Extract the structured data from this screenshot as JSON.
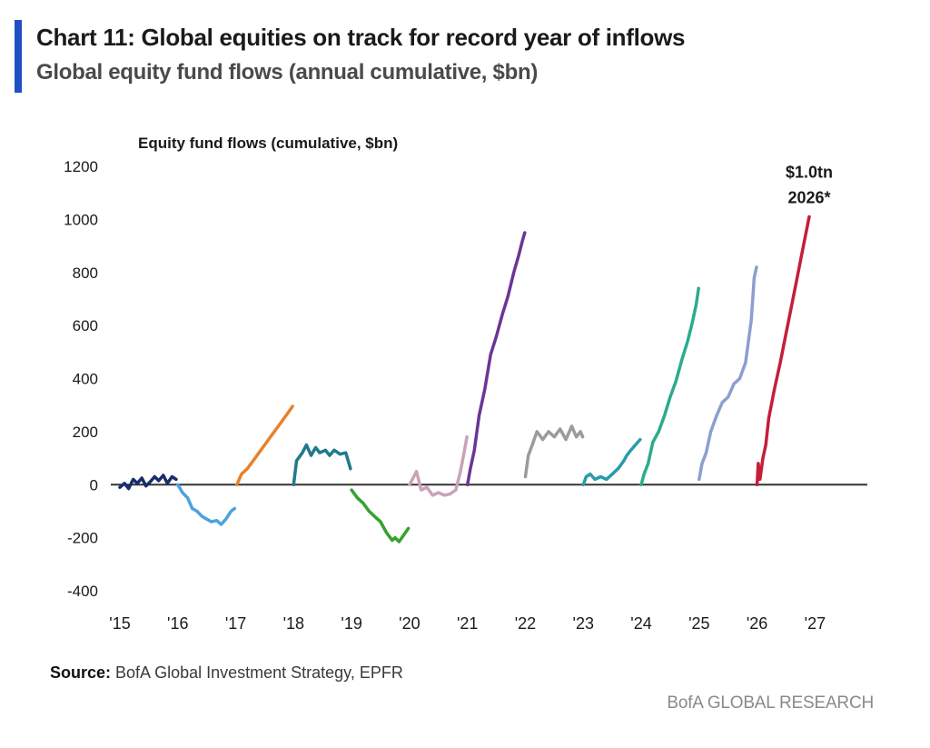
{
  "header": {
    "title": "Chart 11: Global equities on track for record year of inflows",
    "subtitle": "Global equity fund flows (annual cumulative, $bn)"
  },
  "colors": {
    "accent": "#1f4fc4",
    "zero_line": "#333333"
  },
  "chart_data": {
    "type": "line",
    "ylabel": "Equity fund flows (cumulative, $bn)",
    "ylim": [
      -400,
      1200
    ],
    "yticks": [
      -400,
      -200,
      0,
      200,
      400,
      600,
      800,
      1000,
      1200
    ],
    "xlim": [
      2015,
      2027
    ],
    "xtick_labels": [
      "'15",
      "'16",
      "'17",
      "'18",
      "'19",
      "'20",
      "'21",
      "'22",
      "'23",
      "'24",
      "'25",
      "'26",
      "'27"
    ],
    "grid": false,
    "legend": "none",
    "annotation": {
      "line1": "$1.0tn",
      "line2": "2026*",
      "x": 2026.9,
      "y": 1000
    },
    "series": [
      {
        "color": "#1a2d6b",
        "points": [
          [
            2015.0,
            -10
          ],
          [
            2015.08,
            5
          ],
          [
            2015.15,
            -15
          ],
          [
            2015.23,
            20
          ],
          [
            2015.3,
            5
          ],
          [
            2015.38,
            25
          ],
          [
            2015.45,
            -5
          ],
          [
            2015.52,
            10
          ],
          [
            2015.6,
            30
          ],
          [
            2015.67,
            15
          ],
          [
            2015.75,
            35
          ],
          [
            2015.82,
            5
          ],
          [
            2015.9,
            30
          ],
          [
            2015.97,
            20
          ]
        ]
      },
      {
        "color": "#4aa3df",
        "points": [
          [
            2016.0,
            0
          ],
          [
            2016.08,
            -30
          ],
          [
            2016.17,
            -50
          ],
          [
            2016.25,
            -90
          ],
          [
            2016.33,
            -100
          ],
          [
            2016.42,
            -120
          ],
          [
            2016.5,
            -130
          ],
          [
            2016.58,
            -140
          ],
          [
            2016.67,
            -135
          ],
          [
            2016.75,
            -150
          ],
          [
            2016.83,
            -130
          ],
          [
            2016.92,
            -100
          ],
          [
            2016.98,
            -90
          ]
        ]
      },
      {
        "color": "#e8812b",
        "points": [
          [
            2017.02,
            0
          ],
          [
            2017.1,
            40
          ],
          [
            2017.2,
            60
          ],
          [
            2017.3,
            90
          ],
          [
            2017.4,
            120
          ],
          [
            2017.5,
            150
          ],
          [
            2017.6,
            180
          ],
          [
            2017.7,
            210
          ],
          [
            2017.8,
            240
          ],
          [
            2017.9,
            270
          ],
          [
            2017.98,
            295
          ]
        ]
      },
      {
        "color": "#1f7a8c",
        "points": [
          [
            2018.0,
            0
          ],
          [
            2018.05,
            90
          ],
          [
            2018.15,
            120
          ],
          [
            2018.22,
            150
          ],
          [
            2018.3,
            110
          ],
          [
            2018.38,
            140
          ],
          [
            2018.45,
            120
          ],
          [
            2018.55,
            130
          ],
          [
            2018.62,
            110
          ],
          [
            2018.7,
            130
          ],
          [
            2018.8,
            115
          ],
          [
            2018.9,
            120
          ],
          [
            2018.98,
            60
          ]
        ]
      },
      {
        "color": "#35a230",
        "points": [
          [
            2019.0,
            -20
          ],
          [
            2019.1,
            -50
          ],
          [
            2019.2,
            -70
          ],
          [
            2019.3,
            -100
          ],
          [
            2019.4,
            -120
          ],
          [
            2019.5,
            -140
          ],
          [
            2019.6,
            -180
          ],
          [
            2019.7,
            -210
          ],
          [
            2019.75,
            -200
          ],
          [
            2019.82,
            -215
          ],
          [
            2019.9,
            -190
          ],
          [
            2019.98,
            -165
          ]
        ]
      },
      {
        "color": "#c9a3b8",
        "points": [
          [
            2020.0,
            0
          ],
          [
            2020.05,
            20
          ],
          [
            2020.12,
            50
          ],
          [
            2020.2,
            -20
          ],
          [
            2020.3,
            -10
          ],
          [
            2020.4,
            -40
          ],
          [
            2020.5,
            -30
          ],
          [
            2020.6,
            -40
          ],
          [
            2020.7,
            -35
          ],
          [
            2020.8,
            -20
          ],
          [
            2020.88,
            50
          ],
          [
            2020.95,
            130
          ],
          [
            2020.99,
            180
          ]
        ]
      },
      {
        "color": "#6b3596",
        "points": [
          [
            2021.0,
            0
          ],
          [
            2021.05,
            60
          ],
          [
            2021.12,
            130
          ],
          [
            2021.2,
            260
          ],
          [
            2021.3,
            360
          ],
          [
            2021.4,
            490
          ],
          [
            2021.5,
            560
          ],
          [
            2021.6,
            640
          ],
          [
            2021.7,
            710
          ],
          [
            2021.8,
            800
          ],
          [
            2021.88,
            860
          ],
          [
            2021.95,
            920
          ],
          [
            2021.99,
            950
          ]
        ]
      },
      {
        "color": "#9b9b9b",
        "points": [
          [
            2022.0,
            30
          ],
          [
            2022.05,
            110
          ],
          [
            2022.12,
            150
          ],
          [
            2022.2,
            200
          ],
          [
            2022.3,
            170
          ],
          [
            2022.4,
            200
          ],
          [
            2022.5,
            180
          ],
          [
            2022.6,
            210
          ],
          [
            2022.7,
            170
          ],
          [
            2022.8,
            220
          ],
          [
            2022.88,
            180
          ],
          [
            2022.95,
            200
          ],
          [
            2022.99,
            180
          ]
        ]
      },
      {
        "color": "#2a9bab",
        "points": [
          [
            2023.0,
            0
          ],
          [
            2023.05,
            30
          ],
          [
            2023.12,
            40
          ],
          [
            2023.2,
            20
          ],
          [
            2023.3,
            30
          ],
          [
            2023.4,
            20
          ],
          [
            2023.5,
            40
          ],
          [
            2023.6,
            60
          ],
          [
            2023.7,
            90
          ],
          [
            2023.75,
            110
          ],
          [
            2023.82,
            130
          ],
          [
            2023.9,
            150
          ],
          [
            2023.98,
            170
          ]
        ]
      },
      {
        "color": "#2bab8f",
        "points": [
          [
            2024.0,
            0
          ],
          [
            2024.05,
            40
          ],
          [
            2024.12,
            80
          ],
          [
            2024.2,
            160
          ],
          [
            2024.3,
            200
          ],
          [
            2024.4,
            260
          ],
          [
            2024.5,
            330
          ],
          [
            2024.6,
            390
          ],
          [
            2024.7,
            470
          ],
          [
            2024.8,
            540
          ],
          [
            2024.88,
            610
          ],
          [
            2024.95,
            680
          ],
          [
            2024.99,
            740
          ]
        ]
      },
      {
        "color": "#8d9ecf",
        "points": [
          [
            2025.0,
            20
          ],
          [
            2025.05,
            80
          ],
          [
            2025.12,
            120
          ],
          [
            2025.2,
            200
          ],
          [
            2025.3,
            260
          ],
          [
            2025.4,
            310
          ],
          [
            2025.5,
            330
          ],
          [
            2025.6,
            380
          ],
          [
            2025.7,
            400
          ],
          [
            2025.8,
            460
          ],
          [
            2025.9,
            620
          ],
          [
            2025.95,
            780
          ],
          [
            2025.99,
            820
          ]
        ]
      },
      {
        "color": "#c41e3a",
        "points": [
          [
            2026.0,
            0
          ],
          [
            2026.02,
            80
          ],
          [
            2026.05,
            20
          ],
          [
            2026.1,
            100
          ],
          [
            2026.15,
            150
          ],
          [
            2026.2,
            250
          ],
          [
            2026.3,
            360
          ],
          [
            2026.4,
            460
          ],
          [
            2026.5,
            570
          ],
          [
            2026.6,
            680
          ],
          [
            2026.7,
            790
          ],
          [
            2026.8,
            900
          ],
          [
            2026.9,
            1010
          ]
        ]
      }
    ]
  },
  "footer": {
    "source_label": "Source:",
    "source_text": " BofA Global Investment Strategy, EPFR",
    "brand": "BofA GLOBAL RESEARCH"
  }
}
